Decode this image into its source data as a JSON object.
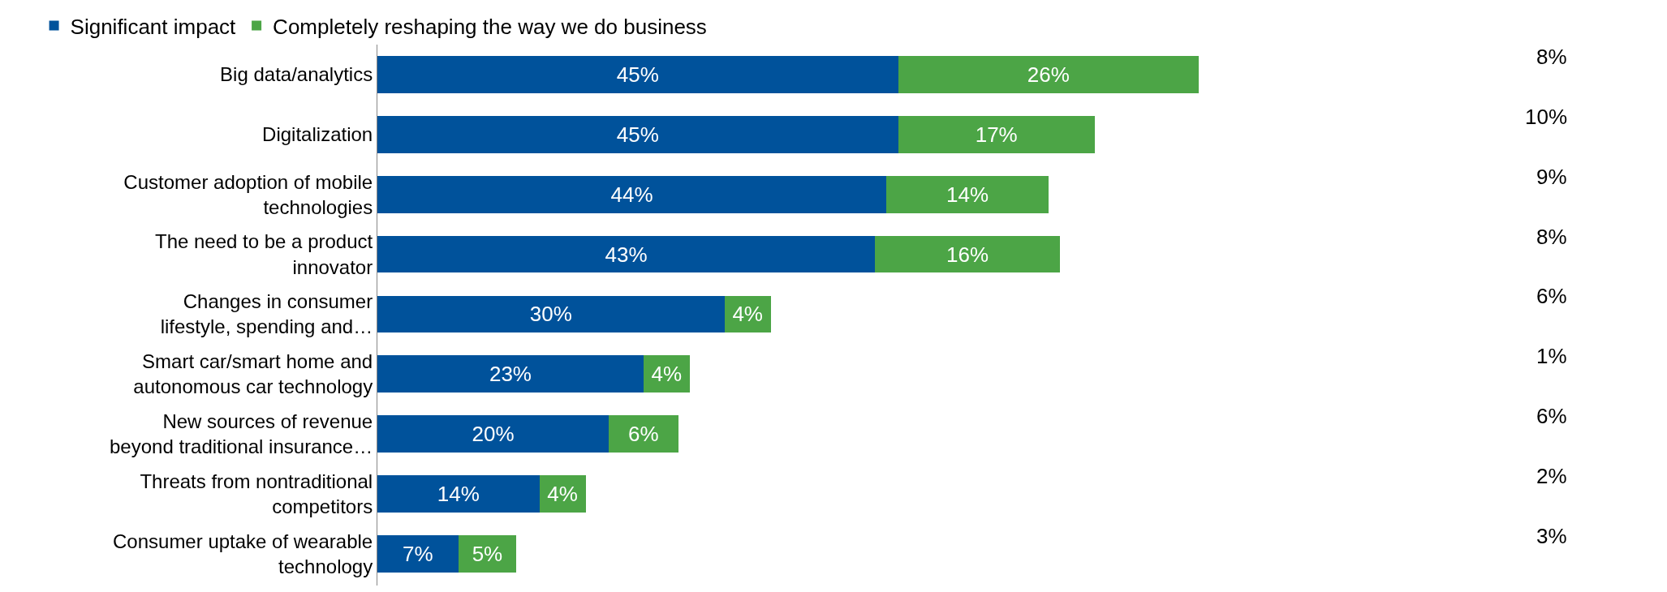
{
  "chart_data": {
    "type": "bar",
    "orientation": "horizontal",
    "stacked": true,
    "legend": "top left",
    "categories": [
      "Big data/analytics",
      "Digitalization",
      "Customer adoption of mobile technologies",
      "The need to be a product innovator",
      "Changes in consumer lifestyle, spending and…",
      "Smart car/smart home and autonomous car technology",
      "New sources of revenue beyond traditional insurance…",
      "Threats from nontraditional competitors",
      "Consumer uptake of wearable technology"
    ],
    "series": [
      {
        "name": "Significant impact",
        "color": "#00529b",
        "values": [
          45,
          45,
          44,
          43,
          30,
          23,
          20,
          14,
          7
        ],
        "value_labels": [
          "45%",
          "45%",
          "44%",
          "43%",
          "30%",
          "23%",
          "20%",
          "14%",
          "7%"
        ]
      },
      {
        "name": "Completely reshaping the way we do business",
        "color": "#4ca546",
        "values": [
          26,
          17,
          14,
          16,
          4,
          4,
          6,
          4,
          5
        ],
        "value_labels": [
          "26%",
          "17%",
          "14%",
          "16%",
          "4%",
          "4%",
          "6%",
          "4%",
          "5%"
        ]
      }
    ],
    "annotations": [
      "8%",
      "10%",
      "9%",
      "8%",
      "6%",
      "1%",
      "6%",
      "2%",
      "3%"
    ]
  }
}
